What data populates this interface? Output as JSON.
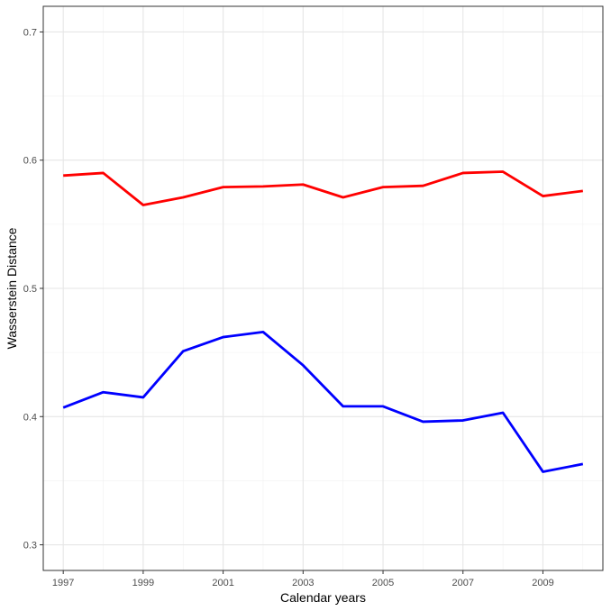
{
  "chart_data": {
    "type": "line",
    "title": "",
    "xlabel": "Calendar years",
    "ylabel": "Wasserstein Distance",
    "x": [
      1997,
      1998,
      1999,
      2000,
      2001,
      2002,
      2003,
      2004,
      2005,
      2006,
      2007,
      2008,
      2009,
      2010
    ],
    "xlim": [
      1996.5,
      2010.5
    ],
    "ylim": [
      0.28,
      0.72
    ],
    "x_ticks": [
      1997,
      1999,
      2001,
      2003,
      2005,
      2007,
      2009
    ],
    "x_tick_labels": [
      "1997",
      "1999",
      "2001",
      "2003",
      "2005",
      "2007",
      "2009"
    ],
    "y_ticks": [
      0.3,
      0.4,
      0.5,
      0.6,
      0.7
    ],
    "y_tick_labels": [
      "0.3",
      "0.4",
      "0.5",
      "0.6",
      "0.7"
    ],
    "x_minor_grid": [
      1998,
      2000,
      2002,
      2004,
      2006,
      2008,
      2010
    ],
    "y_minor_grid": [
      0.35,
      0.45,
      0.55,
      0.65
    ],
    "grid": true,
    "legend": "none",
    "series": [
      {
        "color": "#ff0000",
        "values": [
          0.588,
          0.59,
          0.565,
          0.571,
          0.579,
          0.5795,
          0.581,
          0.571,
          0.579,
          0.58,
          0.59,
          0.591,
          0.572,
          0.576
        ]
      },
      {
        "color": "#0000ff",
        "values": [
          0.407,
          0.419,
          0.415,
          0.451,
          0.462,
          0.466,
          0.44,
          0.408,
          0.408,
          0.396,
          0.397,
          0.403,
          0.357,
          0.363
        ]
      }
    ]
  }
}
